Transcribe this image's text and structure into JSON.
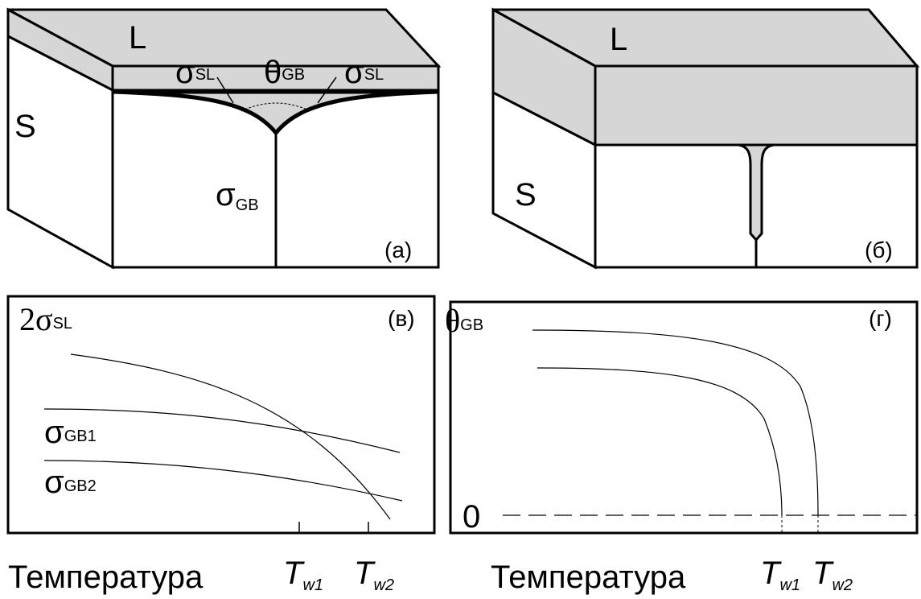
{
  "panel_a": {
    "liquid_label": "L",
    "solid_label": "S",
    "sigma_sl_left": {
      "symbol": "σ",
      "sub": "SL"
    },
    "theta_gb": {
      "symbol": "θ",
      "sub": "GB"
    },
    "sigma_sl_right": {
      "symbol": "σ",
      "sub": "SL"
    },
    "sigma_gb": {
      "symbol": "σ",
      "sub": "GB"
    },
    "tag": "(а)"
  },
  "panel_b": {
    "liquid_label": "L",
    "solid_label": "S",
    "tag": "(б)"
  },
  "panel_c": {
    "tag": "(в)",
    "curves": [
      {
        "coef": "2",
        "symbol": "σ",
        "sub": "SL"
      },
      {
        "symbol": "σ",
        "sub": "GB1"
      },
      {
        "symbol": "σ",
        "sub": "GB2"
      }
    ],
    "x_label": "Температура",
    "ticks": [
      {
        "symbol": "T",
        "sub": "w1"
      },
      {
        "symbol": "T",
        "sub": "w2"
      }
    ]
  },
  "panel_d": {
    "tag": "(г)",
    "y_label": {
      "symbol": "θ",
      "sub": "GB"
    },
    "zero": "0",
    "x_label": "Температура",
    "ticks": [
      {
        "symbol": "T",
        "sub": "w1"
      },
      {
        "symbol": "T",
        "sub": "w2"
      }
    ]
  }
}
